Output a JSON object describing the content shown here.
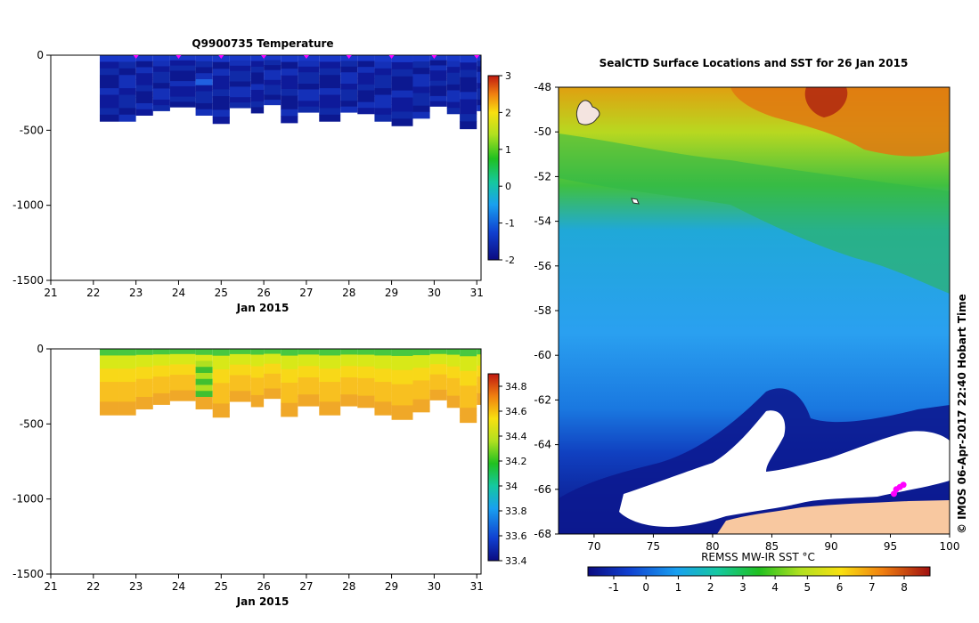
{
  "chart_data": [
    {
      "type": "heatmap",
      "title": "Q9900735  Temperature",
      "xlabel": "Jan 2015",
      "ylabel": "",
      "xlim": [
        21,
        31.1
      ],
      "ylim": [
        -1500,
        0
      ],
      "x_ticks": [
        "21",
        "22",
        "23",
        "24",
        "25",
        "26",
        "27",
        "28",
        "29",
        "30",
        "31"
      ],
      "y_ticks": [
        "0",
        "-500",
        "-1000",
        "-1500"
      ],
      "y_tick_values": [
        0,
        -500,
        -1000,
        -1500
      ],
      "colorbar": {
        "min": -2,
        "max": 3,
        "ticks": [
          "3",
          "2",
          "1",
          "0",
          "-1",
          "-2"
        ],
        "tick_values": [
          3,
          2,
          1,
          0,
          -1,
          -2
        ]
      },
      "profile_days": [
        22.15,
        22.6,
        23.0,
        23.4,
        23.8,
        24.4,
        24.8,
        25.2,
        25.7,
        26.0,
        26.4,
        26.8,
        27.3,
        27.8,
        28.2,
        28.6,
        29.0,
        29.5,
        29.9,
        30.3,
        30.6,
        31.0
      ],
      "profile_max_depths": [
        -440,
        -440,
        -400,
        -370,
        -345,
        -400,
        -455,
        -350,
        -385,
        -330,
        -450,
        -380,
        -440,
        -380,
        -390,
        -440,
        -470,
        -420,
        -340,
        -390,
        -490,
        -370
      ],
      "surface_markers": [
        23.0,
        24.0,
        25.0,
        26.0,
        27.0,
        28.0,
        29.0,
        30.0,
        31.0
      ]
    },
    {
      "type": "heatmap",
      "title": "",
      "xlabel": "Jan 2015",
      "ylabel": "",
      "xlim": [
        21,
        31.1
      ],
      "ylim": [
        -1500,
        0
      ],
      "x_ticks": [
        "21",
        "22",
        "23",
        "24",
        "25",
        "26",
        "27",
        "28",
        "29",
        "30",
        "31"
      ],
      "y_ticks": [
        "0",
        "-500",
        "-1000",
        "-1500"
      ],
      "y_tick_values": [
        0,
        -500,
        -1000,
        -1500
      ],
      "colorbar": {
        "min": 33.4,
        "max": 34.9,
        "ticks": [
          "34.8",
          "34.6",
          "34.4",
          "34.2",
          "34",
          "33.8",
          "33.6",
          "33.4"
        ],
        "tick_values": [
          34.8,
          34.6,
          34.4,
          34.2,
          34.0,
          33.8,
          33.6,
          33.4
        ]
      },
      "profile_days": [
        22.15,
        22.6,
        23.0,
        23.4,
        23.8,
        24.4,
        24.8,
        25.2,
        25.7,
        26.0,
        26.4,
        26.8,
        27.3,
        27.8,
        28.2,
        28.6,
        29.0,
        29.5,
        29.9,
        30.3,
        30.6,
        31.0
      ],
      "profile_max_depths": [
        -440,
        -440,
        -400,
        -370,
        -345,
        -400,
        -455,
        -350,
        -385,
        -330,
        -450,
        -380,
        -440,
        -380,
        -390,
        -440,
        -470,
        -420,
        -340,
        -390,
        -490,
        -370
      ]
    },
    {
      "type": "heatmap",
      "title": "SealCTD Surface Locations and SST for 26 Jan 2015",
      "xlabel": "",
      "ylabel": "",
      "xlim": [
        67,
        100
      ],
      "ylim": [
        -68,
        -48
      ],
      "x_ticks": [
        "70",
        "75",
        "80",
        "85",
        "90",
        "95",
        "100"
      ],
      "x_tick_values": [
        70,
        75,
        80,
        85,
        90,
        95,
        100
      ],
      "y_ticks": [
        "-48",
        "-50",
        "-52",
        "-54",
        "-56",
        "-58",
        "-60",
        "-62",
        "-64",
        "-66",
        "-68"
      ],
      "y_tick_values": [
        -48,
        -50,
        -52,
        -54,
        -56,
        -58,
        -60,
        -62,
        -64,
        -66,
        -68
      ],
      "colorbar": {
        "label": "REMSS MW-IR SST °C",
        "min": -1.8,
        "max": 8.8,
        "ticks": [
          "-1",
          "0",
          "1",
          "2",
          "3",
          "4",
          "5",
          "6",
          "7",
          "8"
        ],
        "tick_values": [
          -1,
          0,
          1,
          2,
          3,
          4,
          5,
          6,
          7,
          8
        ]
      },
      "seal_track": [
        [
          95.3,
          -66.2
        ],
        [
          95.5,
          -66.0
        ],
        [
          95.8,
          -65.9
        ],
        [
          96.1,
          -65.8
        ]
      ]
    }
  ],
  "colors": {
    "marker": "#ff00ff",
    "land": "#ffffff",
    "ice_shelf": "#f8c8a0"
  },
  "credit": "© IMOS 06-Apr-2017 22:40 Hobart Time"
}
